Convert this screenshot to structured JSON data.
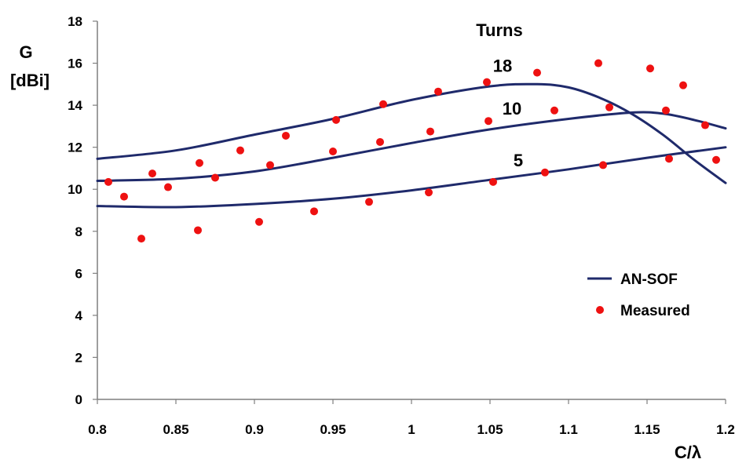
{
  "chart_data": {
    "type": "line",
    "title": "",
    "xlabel": "C/λ",
    "ylabel_line1": "G",
    "ylabel_line2": "[dBi]",
    "xlim": [
      0.8,
      1.2
    ],
    "ylim": [
      0,
      18
    ],
    "x_ticks": [
      "0.8",
      "0.85",
      "0.9",
      "0.95",
      "1",
      "1.05",
      "1.1",
      "1.15",
      "1.2"
    ],
    "y_ticks": [
      "0",
      "2",
      "4",
      "6",
      "8",
      "10",
      "12",
      "14",
      "16",
      "18"
    ],
    "grid": false,
    "legend_position": "bottom-right",
    "legend": [
      {
        "label": "AN-SOF",
        "kind": "line",
        "color": "#1f2a6b"
      },
      {
        "label": "Measured",
        "kind": "marker",
        "color": "#ee1111"
      }
    ],
    "turns_header": "Turns",
    "curve_labels": [
      {
        "text": "18",
        "x": 1.058,
        "y": 15.6
      },
      {
        "text": "10",
        "x": 1.064,
        "y": 13.55
      },
      {
        "text": "5",
        "x": 1.068,
        "y": 11.1
      }
    ],
    "series": [
      {
        "turns": "18",
        "kind": "AN-SOF",
        "color": "#1f2a6b",
        "x": [
          0.8,
          0.85,
          0.9,
          0.95,
          1.0,
          1.05,
          1.08,
          1.1,
          1.12,
          1.14,
          1.16,
          1.18,
          1.2
        ],
        "y": [
          11.45,
          11.85,
          12.6,
          13.35,
          14.25,
          14.9,
          15.0,
          14.85,
          14.35,
          13.6,
          12.6,
          11.4,
          10.3
        ]
      },
      {
        "turns": "10",
        "kind": "AN-SOF",
        "color": "#1f2a6b",
        "x": [
          0.8,
          0.85,
          0.9,
          0.95,
          1.0,
          1.05,
          1.1,
          1.14,
          1.16,
          1.18,
          1.2
        ],
        "y": [
          10.4,
          10.5,
          10.85,
          11.5,
          12.2,
          12.85,
          13.35,
          13.65,
          13.6,
          13.3,
          12.9
        ]
      },
      {
        "turns": "5",
        "kind": "AN-SOF",
        "color": "#1f2a6b",
        "x": [
          0.8,
          0.85,
          0.9,
          0.95,
          1.0,
          1.05,
          1.1,
          1.15,
          1.2
        ],
        "y": [
          9.2,
          9.15,
          9.3,
          9.55,
          9.95,
          10.45,
          10.95,
          11.5,
          12.0
        ]
      },
      {
        "turns": "18",
        "kind": "Measured",
        "color": "#ee1111",
        "x": [
          0.835,
          0.865,
          0.891,
          0.92,
          0.952,
          0.982,
          1.017,
          1.048,
          1.08,
          1.119,
          1.152,
          1.173
        ],
        "y": [
          10.75,
          11.25,
          11.85,
          12.55,
          13.3,
          14.05,
          14.65,
          15.1,
          15.55,
          16.0,
          15.75,
          14.95
        ]
      },
      {
        "turns": "10",
        "kind": "Measured",
        "color": "#ee1111",
        "x": [
          0.807,
          0.817,
          0.845,
          0.875,
          0.91,
          0.95,
          0.98,
          1.012,
          1.049,
          1.091,
          1.126,
          1.162,
          1.187
        ],
        "y": [
          10.35,
          9.65,
          10.1,
          10.55,
          11.15,
          11.8,
          12.25,
          12.75,
          13.25,
          13.75,
          13.9,
          13.75,
          13.05
        ]
      },
      {
        "turns": "5",
        "kind": "Measured",
        "color": "#ee1111",
        "x": [
          0.828,
          0.864,
          0.903,
          0.938,
          0.973,
          1.011,
          1.052,
          1.085,
          1.122,
          1.164,
          1.194
        ],
        "y": [
          7.65,
          8.05,
          8.45,
          8.95,
          9.4,
          9.85,
          10.35,
          10.8,
          11.15,
          11.45,
          11.4
        ]
      }
    ]
  }
}
